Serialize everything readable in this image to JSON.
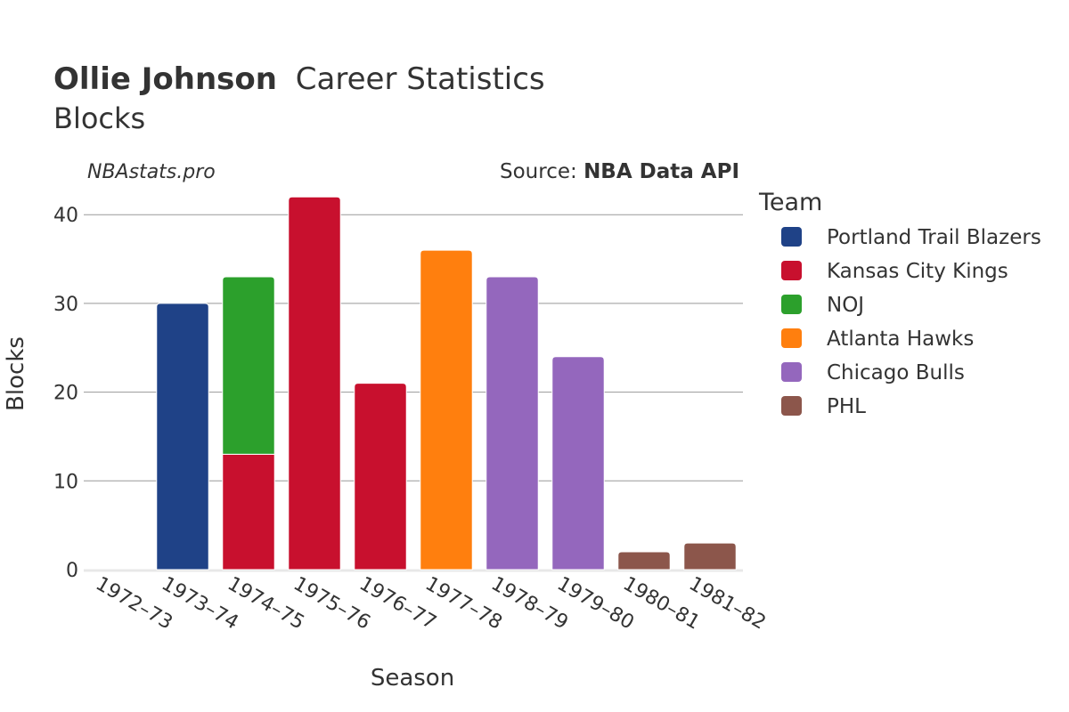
{
  "chart_data": {
    "type": "bar",
    "stacked": true,
    "title_player": "Ollie Johnson",
    "title_rest": "Career Statistics",
    "subtitle": "Blocks",
    "watermark": "NBAstats.pro",
    "source_prefix": "Source: ",
    "source_name": "NBA Data API",
    "xlabel": "Season",
    "ylabel": "Blocks",
    "legend_title": "Team",
    "legend_placement": "right",
    "grid": true,
    "ylim": [
      0,
      42
    ],
    "y_ticks": [
      0,
      10,
      20,
      30,
      40
    ],
    "categories": [
      "1972–73",
      "1973–74",
      "1974–75",
      "1975–76",
      "1976–77",
      "1977–78",
      "1978–79",
      "1979–80",
      "1980–81",
      "1981–82"
    ],
    "series": [
      {
        "name": "Portland Trail Blazers",
        "color": "#1f4287",
        "values": [
          0,
          30,
          0,
          0,
          0,
          0,
          0,
          0,
          0,
          0
        ]
      },
      {
        "name": "Kansas City Kings",
        "color": "#c8102e",
        "values": [
          0,
          0,
          13,
          42,
          21,
          0,
          0,
          0,
          0,
          0
        ]
      },
      {
        "name": "NOJ",
        "color": "#2ca02c",
        "values": [
          0,
          0,
          20,
          0,
          0,
          0,
          0,
          0,
          0,
          0
        ]
      },
      {
        "name": "Atlanta Hawks",
        "color": "#ff7f0e",
        "values": [
          0,
          0,
          0,
          0,
          0,
          36,
          0,
          0,
          0,
          0
        ]
      },
      {
        "name": "Chicago Bulls",
        "color": "#9467bd",
        "values": [
          0,
          0,
          0,
          0,
          0,
          0,
          33,
          24,
          0,
          0
        ]
      },
      {
        "name": "PHL",
        "color": "#8c564b",
        "values": [
          0,
          0,
          0,
          0,
          0,
          0,
          0,
          0,
          2,
          3
        ]
      }
    ]
  }
}
